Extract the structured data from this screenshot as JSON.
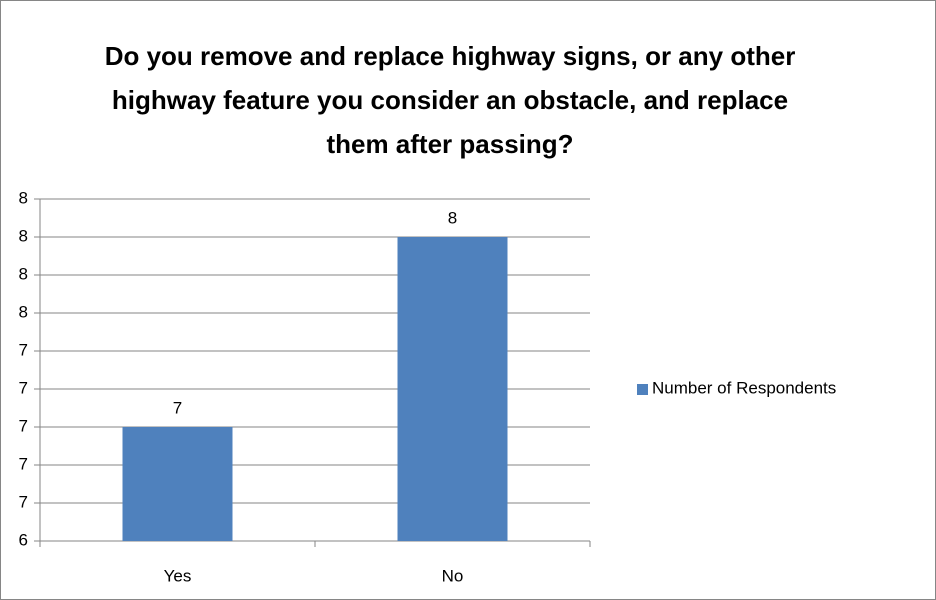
{
  "chart_data": {
    "type": "bar",
    "title": "Do you remove and replace highway signs, or any other highway feature you consider an obstacle, and replace them after passing?",
    "categories": [
      "Yes",
      "No"
    ],
    "series": [
      {
        "name": "Number of Respondents",
        "color": "#4f81bd",
        "values": [
          7,
          8
        ]
      }
    ],
    "ylim": [
      6.4,
      8.2
    ],
    "yticks": [
      {
        "value": 6.4,
        "label": "6"
      },
      {
        "value": 6.6,
        "label": "7"
      },
      {
        "value": 6.8,
        "label": "7"
      },
      {
        "value": 7.0,
        "label": "7"
      },
      {
        "value": 7.2,
        "label": "7"
      },
      {
        "value": 7.4,
        "label": "7"
      },
      {
        "value": 7.6,
        "label": "8"
      },
      {
        "value": 7.8,
        "label": "8"
      },
      {
        "value": 8.0,
        "label": "8"
      },
      {
        "value": 8.2,
        "label": "8"
      }
    ],
    "grid": true,
    "legend": "right"
  }
}
